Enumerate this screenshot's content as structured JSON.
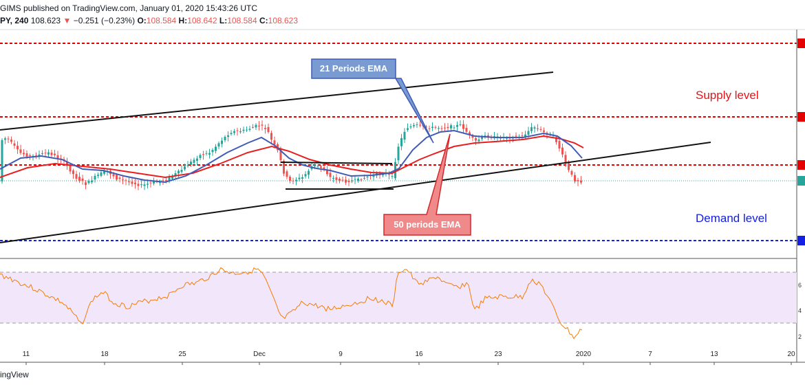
{
  "header": {
    "line1": "GIMS published on TradingView.com, January 01, 2020 15:43:26 UTC",
    "symbol": "PY, 240",
    "last": "108.623",
    "change": "−0.251 (−0.23%)",
    "open_label": "O:",
    "open": "108.584",
    "high_label": "H:",
    "high": "108.642",
    "low_label": "L:",
    "low": "108.584",
    "close_label": "C:",
    "close": "108.623"
  },
  "footer": {
    "brand": "ingView"
  },
  "annotations": {
    "supply": "Supply level",
    "demand": "Demand level",
    "ema21": "21 Periods EMA",
    "ema50": "50 periods EMA"
  },
  "colors": {
    "up": "#26a69a",
    "down": "#ef5350",
    "ema21": "#3f5bb5",
    "ema50": "#e81e1e",
    "supply_line": "#e40000",
    "demand_line": "#1320e4",
    "rsi_line": "#f57c00",
    "rsi_band": "#f2e6fb"
  },
  "chart_data": [
    {
      "type": "candlestick",
      "x_ticks": [
        "11",
        "18",
        "25",
        "Dec",
        "9",
        "16",
        "23",
        "2020",
        "7",
        "13",
        "20"
      ],
      "horizontal_levels": [
        {
          "name": "upper-red",
          "style": "dashed",
          "color": "#e40000"
        },
        {
          "name": "supply",
          "style": "dashed",
          "color": "#e40000"
        },
        {
          "name": "middle-red",
          "style": "dashed",
          "color": "#e40000"
        },
        {
          "name": "demand",
          "style": "dashed",
          "color": "#1320e4"
        }
      ],
      "indicators": [
        "EMA 21",
        "EMA 50"
      ],
      "trendlines": [
        "ascending channel upper",
        "ascending channel lower"
      ],
      "last_price": "108.623"
    },
    {
      "type": "line",
      "indicator": "RSI",
      "y_ticks": [
        "6",
        "4",
        "2"
      ],
      "band": [
        30,
        70
      ]
    }
  ]
}
